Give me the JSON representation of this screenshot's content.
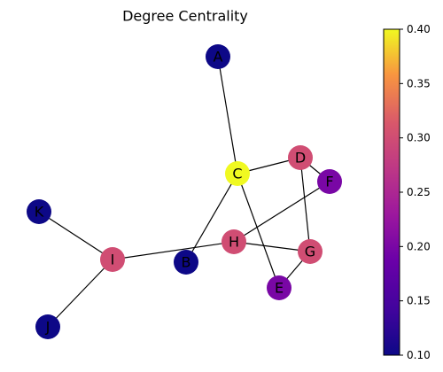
{
  "title": "Degree Centrality",
  "nodes": [
    {
      "id": "A",
      "value": 0.1
    },
    {
      "id": "B",
      "value": 0.1
    },
    {
      "id": "C",
      "value": 0.4
    },
    {
      "id": "D",
      "value": 0.3
    },
    {
      "id": "E",
      "value": 0.2
    },
    {
      "id": "F",
      "value": 0.2
    },
    {
      "id": "G",
      "value": 0.3
    },
    {
      "id": "H",
      "value": 0.3
    },
    {
      "id": "I",
      "value": 0.3
    },
    {
      "id": "J",
      "value": 0.1
    },
    {
      "id": "K",
      "value": 0.1
    }
  ],
  "edges": [
    [
      "A",
      "C"
    ],
    [
      "C",
      "D"
    ],
    [
      "C",
      "B"
    ],
    [
      "C",
      "E"
    ],
    [
      "D",
      "F"
    ],
    [
      "D",
      "G"
    ],
    [
      "F",
      "H"
    ],
    [
      "H",
      "G"
    ],
    [
      "H",
      "I"
    ],
    [
      "G",
      "E"
    ],
    [
      "I",
      "K"
    ],
    [
      "I",
      "J"
    ]
  ],
  "colorbar": {
    "colormap": "plasma",
    "min": 0.1,
    "max": 0.4,
    "ticks": [
      "0.10",
      "0.15",
      "0.20",
      "0.25",
      "0.30",
      "0.35",
      "0.40"
    ]
  }
}
